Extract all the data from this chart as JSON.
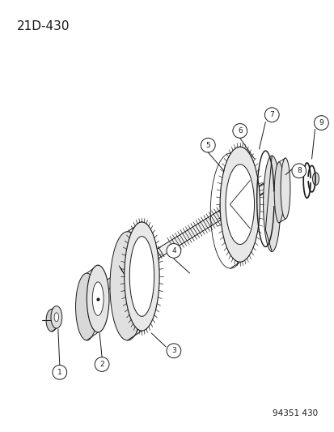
{
  "title": "21D-430",
  "footer": "94351 430",
  "bg_color": "#ffffff",
  "line_color": "#1a1a1a",
  "title_fontsize": 11,
  "footer_fontsize": 7.5,
  "fig_width": 4.14,
  "fig_height": 5.33,
  "dpi": 100
}
